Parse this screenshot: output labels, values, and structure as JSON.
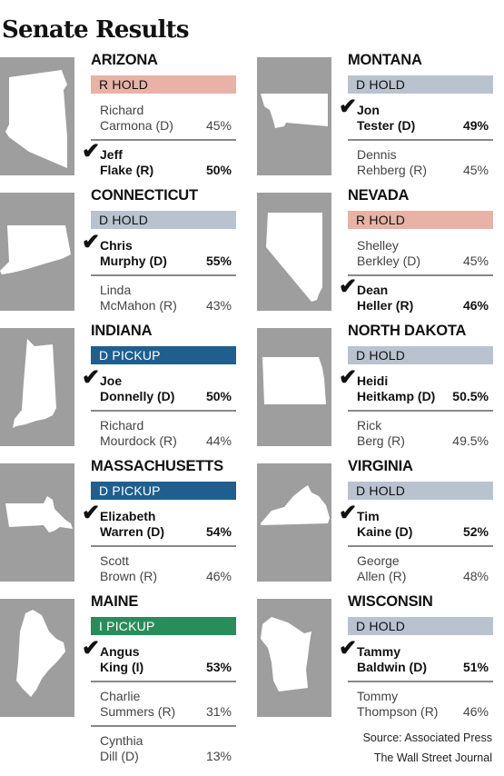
{
  "title": "Senate Results",
  "colors": {
    "r_hold": "#e8b2a6",
    "d_hold": "#b9c3cf",
    "d_pickup": "#1f5f8f",
    "i_pickup": "#2a8c5b"
  },
  "states": [
    {
      "name": "ARIZONA",
      "status": "R HOLD",
      "status_color": "#e8b2a6",
      "status_text": "#111",
      "icon": "arizona-map-icon",
      "candidates": [
        {
          "line1": "Richard",
          "line2": "Carmona (D)",
          "pct": "45%",
          "winner": false
        },
        {
          "line1": "Jeff",
          "line2": "Flake (R)",
          "pct": "50%",
          "winner": true
        }
      ]
    },
    {
      "name": "MONTANA",
      "status": "D HOLD",
      "status_color": "#b9c3cf",
      "status_text": "#111",
      "icon": "montana-map-icon",
      "candidates": [
        {
          "line1": "Jon",
          "line2": "Tester (D)",
          "pct": "49%",
          "winner": true
        },
        {
          "line1": "Dennis",
          "line2": "Rehberg (R)",
          "pct": "45%",
          "winner": false
        }
      ]
    },
    {
      "name": "CONNECTICUT",
      "status": "D HOLD",
      "status_color": "#b9c3cf",
      "status_text": "#111",
      "icon": "connecticut-map-icon",
      "candidates": [
        {
          "line1": "Chris",
          "line2": "Murphy (D)",
          "pct": "55%",
          "winner": true
        },
        {
          "line1": "Linda",
          "line2": "McMahon (R)",
          "pct": "43%",
          "winner": false
        }
      ]
    },
    {
      "name": "NEVADA",
      "status": "R HOLD",
      "status_color": "#e8b2a6",
      "status_text": "#111",
      "icon": "nevada-map-icon",
      "candidates": [
        {
          "line1": "Shelley",
          "line2": "Berkley (D)",
          "pct": "45%",
          "winner": false
        },
        {
          "line1": "Dean",
          "line2": "Heller (R)",
          "pct": "46%",
          "winner": true
        }
      ]
    },
    {
      "name": "INDIANA",
      "status": "D PICKUP",
      "status_color": "#1f5f8f",
      "status_text": "#ffffff",
      "icon": "indiana-map-icon",
      "candidates": [
        {
          "line1": "Joe",
          "line2": "Donnelly (D)",
          "pct": "50%",
          "winner": true
        },
        {
          "line1": "Richard",
          "line2": "Mourdock (R)",
          "pct": "44%",
          "winner": false
        }
      ]
    },
    {
      "name": "NORTH DAKOTA",
      "status": "D HOLD",
      "status_color": "#b9c3cf",
      "status_text": "#111",
      "icon": "north-dakota-map-icon",
      "candidates": [
        {
          "line1": "Heidi",
          "line2": "Heitkamp (D)",
          "pct": "50.5%",
          "winner": true
        },
        {
          "line1": "Rick",
          "line2": "Berg (R)",
          "pct": "49.5%",
          "winner": false
        }
      ]
    },
    {
      "name": "MASSACHUSETTS",
      "status": "D PICKUP",
      "status_color": "#1f5f8f",
      "status_text": "#ffffff",
      "icon": "massachusetts-map-icon",
      "candidates": [
        {
          "line1": "Elizabeth",
          "line2": "Warren (D)",
          "pct": "54%",
          "winner": true
        },
        {
          "line1": "Scott",
          "line2": "Brown (R)",
          "pct": "46%",
          "winner": false
        }
      ]
    },
    {
      "name": "VIRGINIA",
      "status": "D HOLD",
      "status_color": "#b9c3cf",
      "status_text": "#111",
      "icon": "virginia-map-icon",
      "candidates": [
        {
          "line1": "Tim",
          "line2": "Kaine (D)",
          "pct": "52%",
          "winner": true
        },
        {
          "line1": "George",
          "line2": "Allen (R)",
          "pct": "48%",
          "winner": false
        }
      ]
    },
    {
      "name": "MAINE",
      "status": "I PICKUP",
      "status_color": "#2a8c5b",
      "status_text": "#ffffff",
      "icon": "maine-map-icon",
      "candidates": [
        {
          "line1": "Angus",
          "line2": "King (I)",
          "pct": "53%",
          "winner": true
        },
        {
          "line1": "Charlie",
          "line2": "Summers (R)",
          "pct": "31%",
          "winner": false
        },
        {
          "line1": "Cynthia",
          "line2": "Dill (D)",
          "pct": "13%",
          "winner": false
        }
      ]
    },
    {
      "name": "WISCONSIN",
      "status": "D HOLD",
      "status_color": "#b9c3cf",
      "status_text": "#111",
      "icon": "wisconsin-map-icon",
      "candidates": [
        {
          "line1": "Tammy",
          "line2": "Baldwin (D)",
          "pct": "51%",
          "winner": true
        },
        {
          "line1": "Tommy",
          "line2": "Thompson (R)",
          "pct": "46%",
          "winner": false
        }
      ]
    }
  ],
  "source": "Source: Associated Press",
  "publisher": "The Wall Street Journal"
}
